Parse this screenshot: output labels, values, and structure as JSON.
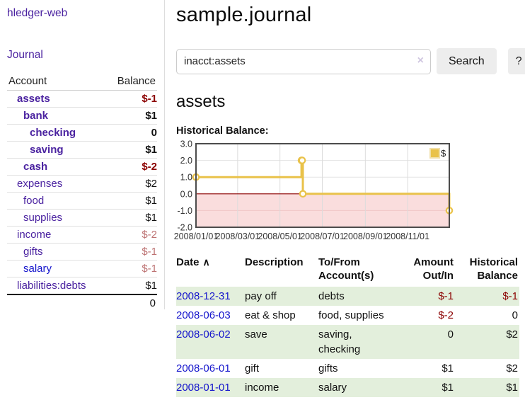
{
  "colors": {
    "link_purple": "#4a22a0",
    "link_blue": "#1414cc",
    "negative_strong": "#8b0000",
    "negative_soft": "#bd7272",
    "row_stripe_green": "#e3efdc",
    "chart_line_gold": "#e9c24a",
    "chart_negative_fill": "#fadddd",
    "chart_zero_line": "#8b0000"
  },
  "sidebar": {
    "app_title": "hledger-web",
    "journal_link": "Journal",
    "accounts_table": {
      "headers": [
        "Account",
        "Balance"
      ],
      "rows": [
        {
          "account": "assets",
          "balance": "$-1",
          "depth": 1,
          "bold": true
        },
        {
          "account": "bank",
          "balance": "$1",
          "depth": 2,
          "bold": true
        },
        {
          "account": "checking",
          "balance": "0",
          "depth": 3,
          "bold": true
        },
        {
          "account": "saving",
          "balance": "$1",
          "depth": 3,
          "bold": true
        },
        {
          "account": "cash",
          "balance": "$-2",
          "depth": 2,
          "bold": true
        },
        {
          "account": "expenses",
          "balance": "$2",
          "depth": 1,
          "bold": false
        },
        {
          "account": "food",
          "balance": "$1",
          "depth": 2,
          "bold": false
        },
        {
          "account": "supplies",
          "balance": "$1",
          "depth": 2,
          "bold": false
        },
        {
          "account": "income",
          "balance": "$-2",
          "depth": 1,
          "bold": false
        },
        {
          "account": "gifts",
          "balance": "$-1",
          "depth": 2,
          "bold": false
        },
        {
          "account": "salary",
          "balance": "$-1",
          "depth": 2,
          "bold": false,
          "unvisited": true
        },
        {
          "account": "liabilities:debts",
          "balance": "$1",
          "depth": 1,
          "bold": false
        }
      ],
      "total": "0"
    }
  },
  "main": {
    "title": "sample.journal",
    "search": {
      "value": "inacct:assets",
      "clear_icon": "×",
      "button_label": "Search",
      "help_label": "?"
    },
    "account_heading": "assets",
    "chart_label": "Historical Balance:"
  },
  "chart_data": {
    "type": "line",
    "step": true,
    "title": "Historical Balance",
    "xlabel": "",
    "ylabel": "",
    "xlim": [
      "2008/01/01",
      "2008/12/31"
    ],
    "ylim": [
      -2,
      3
    ],
    "yticks": [
      3,
      2,
      1,
      0,
      -1,
      -2
    ],
    "xticks": [
      "2008/01/01",
      "2008/03/01",
      "2008/05/01",
      "2008/07/01",
      "2008/09/01",
      "2008/11/01"
    ],
    "grid": true,
    "legend_position": "top-right",
    "series": [
      {
        "name": "$",
        "color": "#e9c24a",
        "points": [
          [
            "2008-01-01",
            1
          ],
          [
            "2008-06-01",
            2
          ],
          [
            "2008-06-02",
            2
          ],
          [
            "2008-06-03",
            0
          ],
          [
            "2008-12-31",
            -1
          ]
        ]
      }
    ]
  },
  "transactions": {
    "headers": [
      {
        "label": "Date",
        "sort_icon": "∧",
        "align": "left"
      },
      {
        "label": "Description",
        "align": "left"
      },
      {
        "label": "To/From Account(s)",
        "align": "left"
      },
      {
        "label": "Amount Out/In",
        "align": "right"
      },
      {
        "label": "Historical Balance",
        "align": "right"
      }
    ],
    "rows": [
      {
        "date": "2008-12-31",
        "description": "pay off",
        "accounts": "debts",
        "amount": "$-1",
        "balance": "$-1"
      },
      {
        "date": "2008-06-03",
        "description": "eat & shop",
        "accounts": "food, supplies",
        "amount": "$-2",
        "balance": "0"
      },
      {
        "date": "2008-06-02",
        "description": "save",
        "accounts": "saving, checking",
        "amount": "0",
        "balance": "$2"
      },
      {
        "date": "2008-06-01",
        "description": "gift",
        "accounts": "gifts",
        "amount": "$1",
        "balance": "$2"
      },
      {
        "date": "2008-01-01",
        "description": "income",
        "accounts": "salary",
        "amount": "$1",
        "balance": "$1"
      }
    ]
  }
}
